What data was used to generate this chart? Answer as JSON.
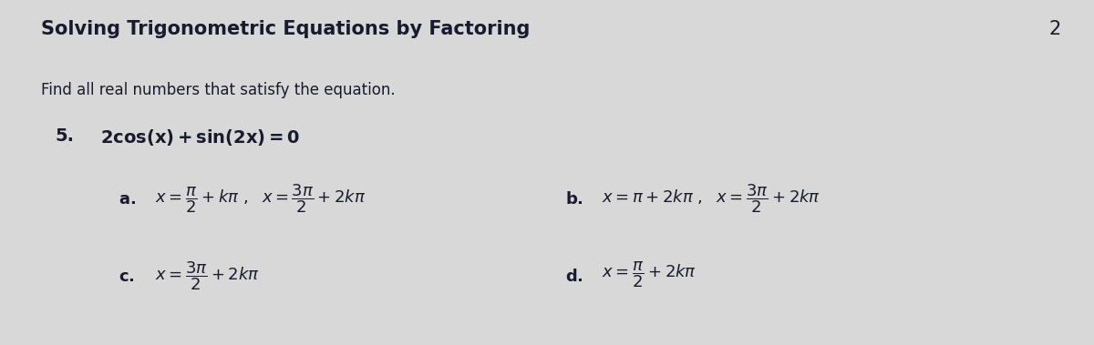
{
  "title": "Solving Trigonometric Equations by Factoring",
  "page_number": "2",
  "subtitle": "Find all real numbers that satisfy the equation.",
  "problem_number": "5.",
  "bg_color": "#d8d8d8",
  "text_color": "#1a1a2e",
  "title_fontsize": 15,
  "body_fontsize": 12,
  "answer_fontsize": 13,
  "eq_fontsize": 14
}
